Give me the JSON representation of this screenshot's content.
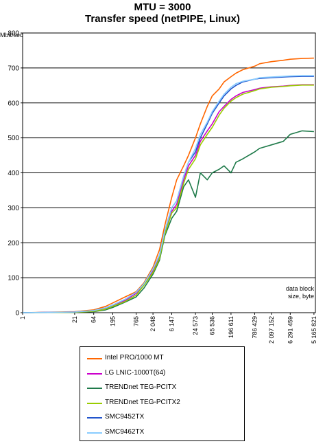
{
  "chart_data": {
    "type": "line",
    "title": "MTU = 3000",
    "subtitle": "Transfer speed (netPIPE, Linux)",
    "ylabel": "Mbit/sec",
    "xlabel": "data block size, byte",
    "ylim": [
      0,
      800
    ],
    "yticks": [
      0,
      100,
      200,
      300,
      400,
      500,
      600,
      700,
      800
    ],
    "x_scale": "log",
    "xtick_labels": [
      "1",
      "21",
      "64",
      "195",
      "765",
      "2 048",
      "6 147",
      "24 573",
      "65 536",
      "196 611",
      "786 429",
      "2 097 152",
      "6 291 459",
      "25 165 821"
    ],
    "grid": "horizontal",
    "legend_position": "bottom",
    "series": [
      {
        "name": "Intel PRO/1000 MT",
        "color": "#ff6600",
        "x": [
          1,
          21,
          64,
          128,
          195,
          400,
          765,
          1200,
          2048,
          3000,
          4096,
          6147,
          8192,
          12288,
          16384,
          24573,
          32768,
          49152,
          65536,
          98304,
          131072,
          196611,
          262144,
          393216,
          786429,
          1048576,
          2097152,
          4194304,
          6291459,
          12582912,
          25165821
        ],
        "values": [
          0,
          3,
          8,
          18,
          28,
          45,
          60,
          85,
          130,
          180,
          250,
          330,
          380,
          420,
          450,
          500,
          540,
          590,
          620,
          640,
          660,
          675,
          685,
          695,
          705,
          712,
          718,
          722,
          725,
          727,
          728
        ]
      },
      {
        "name": "LG LNIC-1000T(64)",
        "color": "#cc00cc",
        "x": [
          1,
          21,
          64,
          128,
          195,
          400,
          765,
          1200,
          2048,
          3000,
          4096,
          6147,
          8192,
          12288,
          16384,
          24573,
          32768,
          49152,
          65536,
          98304,
          131072,
          196611,
          262144,
          393216,
          786429,
          1048576,
          2097152,
          4194304,
          6291459,
          12582912,
          25165821
        ],
        "values": [
          0,
          2,
          5,
          12,
          20,
          35,
          55,
          80,
          120,
          160,
          230,
          290,
          310,
          380,
          420,
          450,
          490,
          520,
          540,
          575,
          590,
          610,
          620,
          630,
          638,
          642,
          646,
          648,
          650,
          652,
          652
        ]
      },
      {
        "name": "TRENDnet TEG-PCITX",
        "color": "#1f7a4a",
        "x": [
          1,
          21,
          64,
          128,
          195,
          400,
          765,
          1200,
          2048,
          3000,
          4096,
          6147,
          8192,
          12288,
          16384,
          24573,
          32768,
          49152,
          65536,
          98304,
          131072,
          196611,
          262144,
          393216,
          786429,
          1048576,
          2097152,
          4194304,
          6291459,
          12582912,
          25165821
        ],
        "values": [
          0,
          1,
          3,
          8,
          15,
          30,
          45,
          70,
          110,
          150,
          220,
          270,
          290,
          360,
          380,
          330,
          400,
          380,
          400,
          410,
          420,
          400,
          430,
          440,
          460,
          470,
          480,
          490,
          510,
          520,
          518
        ]
      },
      {
        "name": "TRENDnet TEG-PCITX2",
        "color": "#99cc00",
        "x": [
          1,
          21,
          64,
          128,
          195,
          400,
          765,
          1200,
          2048,
          3000,
          4096,
          6147,
          8192,
          12288,
          16384,
          24573,
          32768,
          49152,
          65536,
          98304,
          131072,
          196611,
          262144,
          393216,
          786429,
          1048576,
          2097152,
          4194304,
          6291459,
          12582912,
          25165821
        ],
        "values": [
          0,
          1,
          4,
          10,
          18,
          32,
          50,
          78,
          115,
          155,
          225,
          285,
          300,
          370,
          410,
          440,
          480,
          510,
          530,
          565,
          585,
          605,
          615,
          625,
          635,
          640,
          645,
          647,
          649,
          651,
          651
        ]
      },
      {
        "name": "SMC9452TX",
        "color": "#2255cc",
        "x": [
          1,
          21,
          64,
          128,
          195,
          400,
          765,
          1200,
          2048,
          3000,
          4096,
          6147,
          8192,
          12288,
          16384,
          24573,
          32768,
          49152,
          65536,
          98304,
          131072,
          196611,
          262144,
          393216,
          786429,
          1048576,
          2097152,
          4194304,
          6291459,
          12582912,
          25165821
        ],
        "values": [
          0,
          2,
          6,
          14,
          22,
          38,
          58,
          82,
          125,
          165,
          235,
          300,
          320,
          390,
          430,
          460,
          500,
          540,
          570,
          600,
          620,
          640,
          650,
          660,
          668,
          670,
          672,
          674,
          675,
          676,
          676
        ]
      },
      {
        "name": "SMC9462TX",
        "color": "#88ccff",
        "x": [
          1,
          21,
          64,
          128,
          195,
          400,
          765,
          1200,
          2048,
          3000,
          4096,
          6147,
          8192,
          12288,
          16384,
          24573,
          32768,
          49152,
          65536,
          98304,
          131072,
          196611,
          262144,
          393216,
          786429,
          1048576,
          2097152,
          4194304,
          6291459,
          12582912,
          25165821
        ],
        "values": [
          0,
          2,
          6,
          14,
          22,
          38,
          58,
          82,
          125,
          165,
          235,
          300,
          320,
          390,
          430,
          470,
          510,
          545,
          575,
          605,
          625,
          645,
          655,
          662,
          668,
          672,
          674,
          676,
          677,
          678,
          678
        ]
      }
    ]
  }
}
